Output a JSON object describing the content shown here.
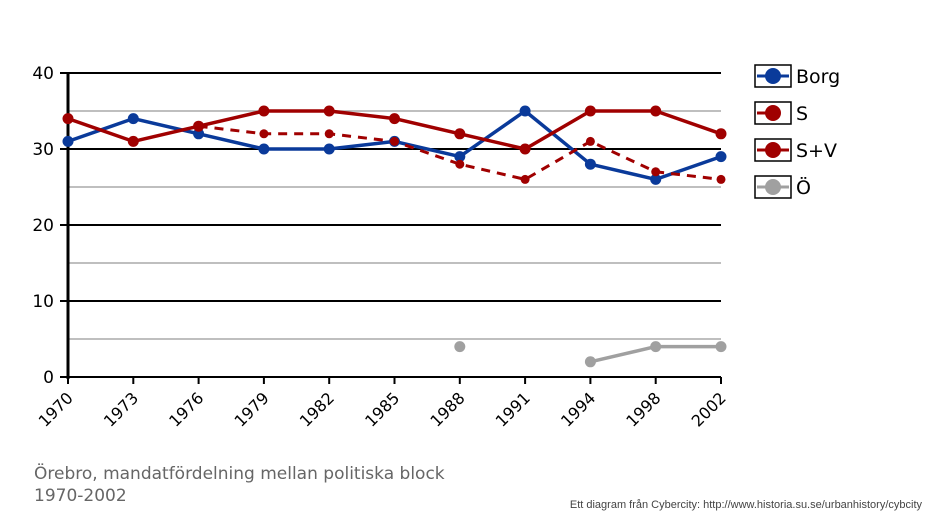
{
  "chart_data": {
    "type": "line",
    "title": "Örebro, mandatfördelning mellan politiska block 1970-2002",
    "categories": [
      "1970",
      "1973",
      "1976",
      "1979",
      "1982",
      "1985",
      "1988",
      "1991",
      "1994",
      "1998",
      "2002"
    ],
    "ylim": [
      0,
      40
    ],
    "yticks": [
      0,
      10,
      20,
      30,
      40
    ],
    "grid": true,
    "legend": "right",
    "series": [
      {
        "name": "Borg",
        "color": "#0a3a9a",
        "dashed": false,
        "values": [
          31,
          34,
          32,
          30,
          30,
          31,
          29,
          35,
          28,
          26,
          29
        ]
      },
      {
        "name": "S",
        "color": "#a00000",
        "dashed": true,
        "values": [
          null,
          null,
          33,
          32,
          32,
          31,
          28,
          26,
          31,
          27,
          26
        ]
      },
      {
        "name": "S+V",
        "color": "#a00000",
        "dashed": false,
        "values": [
          34,
          31,
          33,
          35,
          35,
          34,
          32,
          30,
          35,
          35,
          32
        ]
      },
      {
        "name": "Ö",
        "color": "#a0a0a0",
        "dashed": false,
        "values": [
          null,
          null,
          null,
          null,
          null,
          null,
          4,
          null,
          2,
          4,
          4
        ]
      }
    ]
  },
  "caption": "Örebro, mandatfördelning mellan politiska block 1970-2002",
  "credit": "Ett diagram från Cybercity: http://www.historia.su.se/urbanhistory/cybcity"
}
